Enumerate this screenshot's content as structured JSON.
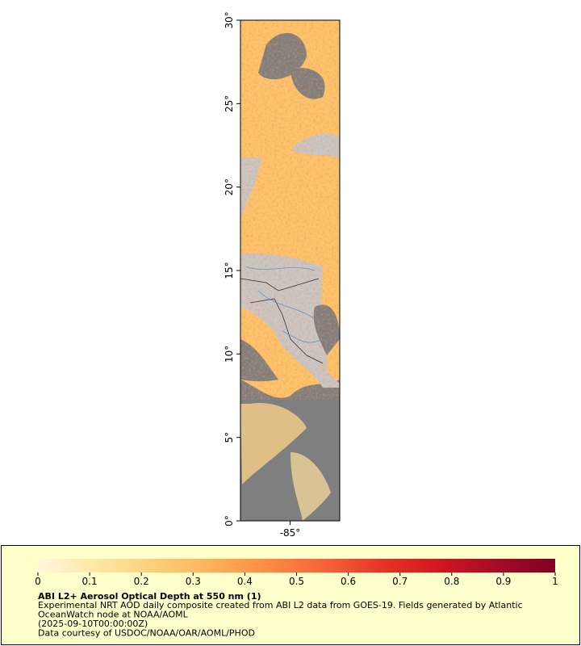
{
  "map": {
    "xlim": [
      -88,
      -82
    ],
    "ylim": [
      0,
      30
    ],
    "yticks": [
      {
        "value": 0,
        "label": "0°"
      },
      {
        "value": 5,
        "label": "5°"
      },
      {
        "value": 10,
        "label": "10°"
      },
      {
        "value": 15,
        "label": "15°"
      },
      {
        "value": 20,
        "label": "20°"
      },
      {
        "value": 25,
        "label": "25°"
      },
      {
        "value": 30,
        "label": "30°"
      }
    ],
    "xticks": [
      {
        "value": -85,
        "label": "-85°"
      }
    ]
  },
  "colorbar": {
    "title": "ABI L2+ Aerosol Optical Depth at 550 nm (1)",
    "lim": [
      0,
      1
    ],
    "ticks": [
      0,
      0.1,
      0.2,
      0.3,
      0.4,
      0.5,
      0.6,
      0.7,
      0.8,
      0.9,
      1
    ],
    "colors": [
      "#fff8dc",
      "#fee7a6",
      "#fdd07a",
      "#fdb25c",
      "#fc8c43",
      "#f6623a",
      "#e63428",
      "#d0161f",
      "#a50b26",
      "#800026"
    ]
  },
  "caption": {
    "lines": [
      "Experimental NRT AOD daily composite created from ABI L2 data from GOES-19. Fields generated by Atlantic",
      "OceanWatch node at NOAA/AOML",
      "(2025-09-10T00:00:00Z)",
      "Data courtesy of USDOC/NOAA/OAR/AOML/PHOD"
    ]
  }
}
